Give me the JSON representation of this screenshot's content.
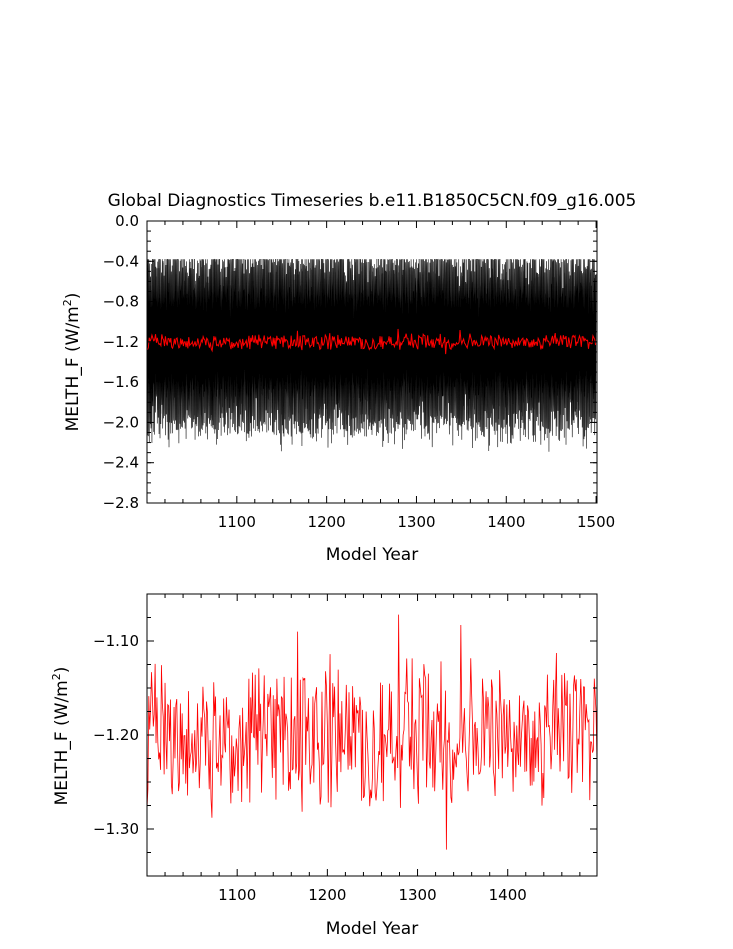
{
  "chart_data": [
    {
      "type": "line",
      "title": "Global Diagnostics Timeseries b.e11.B1850C5CN.f09_g16.005",
      "xlabel": "Model Year",
      "ylabel_main": "MELTH_F (W/m",
      "ylabel_sup": "2",
      "ylabel_end": ")",
      "xlim": [
        1000,
        1501
      ],
      "ylim": [
        -2.8,
        0.0
      ],
      "xticks": [
        1100,
        1200,
        1300,
        1400,
        1500
      ],
      "yticks": [
        0.0,
        -0.4,
        -0.8,
        -1.2,
        -1.6,
        -2.0,
        -2.4,
        -2.8
      ],
      "ytick_labels": [
        "0.0",
        "−0.4",
        "−0.8",
        "−1.2",
        "−1.6",
        "−2.0",
        "−2.4",
        "−2.8"
      ],
      "grid": false,
      "series": [
        {
          "color": "#000000",
          "values_monthly_range": [
            -2.65,
            -0.4
          ],
          "mean": -1.2,
          "note_values": "monthly values oscillate seasonally between approximately -2.65 and -0.45"
        },
        {
          "color": "#ff0000",
          "values_annual_range": [
            -1.32,
            -1.07
          ],
          "mean": -1.2
        }
      ]
    },
    {
      "type": "line",
      "title": "",
      "xlabel": "Model Year",
      "ylabel_main": "MELTH_F (W/m",
      "ylabel_sup": "2",
      "ylabel_end": ")",
      "xlim": [
        1000,
        1499
      ],
      "ylim": [
        -1.35,
        -1.05
      ],
      "xticks": [
        1100,
        1200,
        1300,
        1400
      ],
      "yticks": [
        -1.1,
        -1.2,
        -1.3
      ],
      "ytick_labels": [
        "−1.10",
        "−1.20",
        "−1.30"
      ],
      "grid": false,
      "series": [
        {
          "color": "#ff0000",
          "values_annual_range": [
            -1.322,
            -1.072
          ],
          "mean": -1.2,
          "highlights": [
            [
              1279,
              -1.072
            ],
            [
              1332,
              -1.322
            ],
            [
              1348,
              -1.083
            ],
            [
              1167,
              -1.09
            ],
            [
              1072,
              -1.288
            ]
          ]
        }
      ]
    }
  ]
}
